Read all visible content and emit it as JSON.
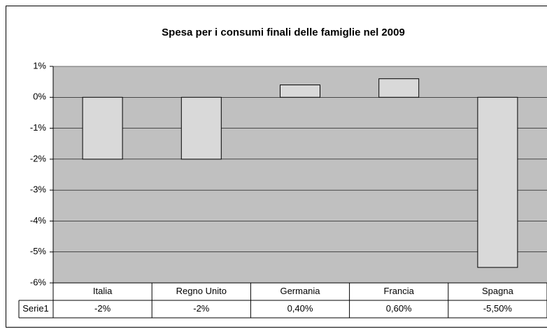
{
  "chart_data": {
    "type": "bar",
    "title": "Spesa per i consumi finali delle famiglie nel 2009",
    "categories": [
      "Italia",
      "Regno Unito",
      "Germania",
      "Francia",
      "Spagna"
    ],
    "series": [
      {
        "name": "Serie1",
        "color": "#d9d9d9",
        "values": [
          -2,
          -2,
          0.4,
          0.6,
          -5.5
        ],
        "value_labels": [
          "-2%",
          "-2%",
          "0,40%",
          "0,60%",
          "-5,50%"
        ]
      }
    ],
    "ylim": [
      -6,
      1
    ],
    "yticks": [
      {
        "value": 1,
        "label": "1%"
      },
      {
        "value": 0,
        "label": "0%"
      },
      {
        "value": -1,
        "label": "-1%"
      },
      {
        "value": -2,
        "label": "-2%"
      },
      {
        "value": -3,
        "label": "-3%"
      },
      {
        "value": -4,
        "label": "-4%"
      },
      {
        "value": -5,
        "label": "-5%"
      },
      {
        "value": -6,
        "label": "-6%"
      }
    ],
    "grid": true,
    "plot_background": "#c0c0c0"
  }
}
